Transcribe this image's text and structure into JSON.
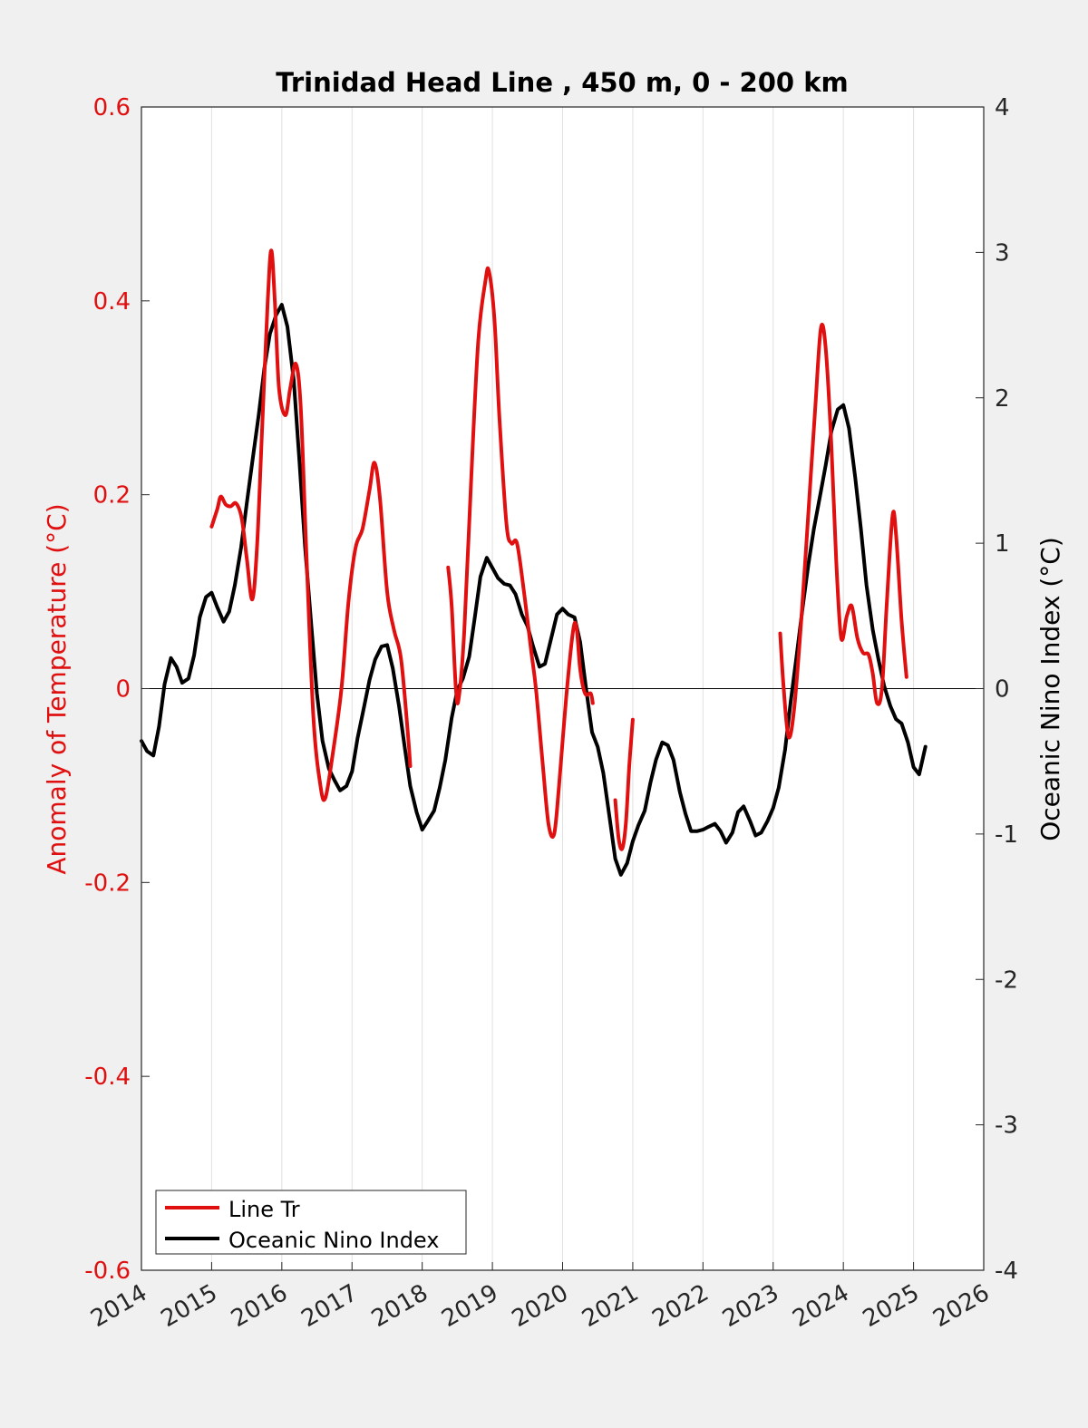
{
  "chart_data": {
    "type": "line",
    "title": "Trinidad Head Line , 450 m, 0 - 200 km",
    "xlabel": "",
    "ylabel_left": "Anomaly of Temperature (°C)",
    "ylabel_right": "Oceanic Nino Index (°C)",
    "xlim": [
      2014,
      2026
    ],
    "ylim_left": [
      -0.6,
      0.6
    ],
    "ylim_right": [
      -4,
      4
    ],
    "x_ticks": [
      "2014",
      "2015",
      "2016",
      "2017",
      "2018",
      "2019",
      "2020",
      "2021",
      "2022",
      "2023",
      "2024",
      "2025",
      "2026"
    ],
    "y_left_ticks": [
      "0.6",
      "0.4",
      "0.2",
      "0",
      "-0.2",
      "-0.4",
      "-0.6"
    ],
    "y_right_ticks": [
      "4",
      "3",
      "2",
      "1",
      "0",
      "-1",
      "-2",
      "-3",
      "-4"
    ],
    "grid": "x",
    "legend_position": "bottom-left",
    "colors": {
      "left_axis": "#e01010",
      "line_tr": "#e01010",
      "oni": "#000000"
    },
    "series": [
      {
        "name": "Line Tr",
        "axis": "left",
        "segments": [
          [
            [
              2015.0,
              0.167
            ],
            [
              2015.08,
              0.185
            ],
            [
              2015.13,
              0.198
            ],
            [
              2015.2,
              0.19
            ],
            [
              2015.27,
              0.188
            ],
            [
              2015.35,
              0.191
            ],
            [
              2015.43,
              0.175
            ],
            [
              2015.5,
              0.135
            ],
            [
              2015.58,
              0.092
            ],
            [
              2015.65,
              0.15
            ],
            [
              2015.72,
              0.27
            ],
            [
              2015.8,
              0.4
            ],
            [
              2015.85,
              0.452
            ],
            [
              2015.9,
              0.4
            ],
            [
              2015.96,
              0.31
            ],
            [
              2016.05,
              0.282
            ],
            [
              2016.12,
              0.31
            ],
            [
              2016.2,
              0.335
            ],
            [
              2016.27,
              0.29
            ],
            [
              2016.35,
              0.14
            ],
            [
              2016.45,
              -0.03
            ],
            [
              2016.55,
              -0.1
            ],
            [
              2016.62,
              -0.113
            ],
            [
              2016.72,
              -0.07
            ],
            [
              2016.85,
              0.0
            ],
            [
              2016.95,
              0.09
            ],
            [
              2017.05,
              0.145
            ],
            [
              2017.15,
              0.165
            ],
            [
              2017.25,
              0.205
            ],
            [
              2017.32,
              0.233
            ],
            [
              2017.4,
              0.195
            ],
            [
              2017.5,
              0.1
            ],
            [
              2017.6,
              0.06
            ],
            [
              2017.7,
              0.03
            ],
            [
              2017.8,
              -0.05
            ],
            [
              2017.83,
              -0.08
            ]
          ],
          [
            [
              2018.37,
              0.125
            ],
            [
              2018.42,
              0.085
            ],
            [
              2018.48,
              0.0
            ],
            [
              2018.52,
              -0.01
            ],
            [
              2018.6,
              0.06
            ],
            [
              2018.7,
              0.22
            ],
            [
              2018.8,
              0.36
            ],
            [
              2018.9,
              0.42
            ],
            [
              2018.95,
              0.431
            ],
            [
              2019.03,
              0.38
            ],
            [
              2019.1,
              0.28
            ],
            [
              2019.2,
              0.17
            ],
            [
              2019.27,
              0.15
            ],
            [
              2019.35,
              0.15
            ],
            [
              2019.45,
              0.1
            ],
            [
              2019.55,
              0.04
            ],
            [
              2019.62,
              0.0
            ],
            [
              2019.72,
              -0.08
            ],
            [
              2019.8,
              -0.14
            ],
            [
              2019.88,
              -0.15
            ],
            [
              2019.95,
              -0.1
            ],
            [
              2020.05,
              -0.01
            ],
            [
              2020.15,
              0.06
            ],
            [
              2020.2,
              0.062
            ],
            [
              2020.25,
              0.02
            ],
            [
              2020.32,
              -0.005
            ],
            [
              2020.4,
              -0.005
            ],
            [
              2020.43,
              -0.015
            ]
          ],
          [
            [
              2020.75,
              -0.115
            ],
            [
              2020.8,
              -0.155
            ],
            [
              2020.85,
              -0.165
            ],
            [
              2020.9,
              -0.14
            ],
            [
              2020.95,
              -0.08
            ],
            [
              2021.0,
              -0.032
            ]
          ],
          [
            [
              2023.1,
              0.057
            ],
            [
              2023.15,
              0.0
            ],
            [
              2023.22,
              -0.05
            ],
            [
              2023.3,
              -0.02
            ],
            [
              2023.4,
              0.07
            ],
            [
              2023.5,
              0.18
            ],
            [
              2023.6,
              0.29
            ],
            [
              2023.68,
              0.372
            ],
            [
              2023.75,
              0.35
            ],
            [
              2023.83,
              0.25
            ],
            [
              2023.9,
              0.13
            ],
            [
              2023.97,
              0.052
            ],
            [
              2024.05,
              0.075
            ],
            [
              2024.12,
              0.085
            ],
            [
              2024.2,
              0.052
            ],
            [
              2024.28,
              0.037
            ],
            [
              2024.36,
              0.035
            ],
            [
              2024.42,
              0.015
            ],
            [
              2024.48,
              -0.015
            ],
            [
              2024.55,
              0.0
            ],
            [
              2024.62,
              0.09
            ],
            [
              2024.7,
              0.178
            ],
            [
              2024.75,
              0.16
            ],
            [
              2024.83,
              0.07
            ],
            [
              2024.9,
              0.012
            ]
          ]
        ]
      },
      {
        "name": "Oceanic Nino Index",
        "axis": "right",
        "segments": [
          [
            [
              2014.0,
              -0.36
            ],
            [
              2014.08,
              -0.43
            ],
            [
              2014.17,
              -0.46
            ],
            [
              2014.25,
              -0.26
            ],
            [
              2014.33,
              0.03
            ],
            [
              2014.42,
              0.21
            ],
            [
              2014.5,
              0.15
            ],
            [
              2014.58,
              0.04
            ],
            [
              2014.67,
              0.07
            ],
            [
              2014.75,
              0.23
            ],
            [
              2014.83,
              0.49
            ],
            [
              2014.92,
              0.63
            ],
            [
              2015.0,
              0.66
            ],
            [
              2015.08,
              0.56
            ],
            [
              2015.17,
              0.46
            ],
            [
              2015.25,
              0.53
            ],
            [
              2015.33,
              0.71
            ],
            [
              2015.42,
              0.97
            ],
            [
              2015.5,
              1.27
            ],
            [
              2015.58,
              1.56
            ],
            [
              2015.67,
              1.88
            ],
            [
              2015.75,
              2.2
            ],
            [
              2015.83,
              2.44
            ],
            [
              2015.92,
              2.57
            ],
            [
              2016.0,
              2.64
            ],
            [
              2016.08,
              2.49
            ],
            [
              2016.17,
              2.12
            ],
            [
              2016.25,
              1.57
            ],
            [
              2016.33,
              0.98
            ],
            [
              2016.42,
              0.44
            ],
            [
              2016.5,
              -0.03
            ],
            [
              2016.58,
              -0.36
            ],
            [
              2016.67,
              -0.55
            ],
            [
              2016.75,
              -0.63
            ],
            [
              2016.83,
              -0.7
            ],
            [
              2016.92,
              -0.67
            ],
            [
              2017.0,
              -0.57
            ],
            [
              2017.08,
              -0.34
            ],
            [
              2017.17,
              -0.13
            ],
            [
              2017.25,
              0.06
            ],
            [
              2017.33,
              0.2
            ],
            [
              2017.42,
              0.29
            ],
            [
              2017.5,
              0.3
            ],
            [
              2017.58,
              0.14
            ],
            [
              2017.67,
              -0.12
            ],
            [
              2017.75,
              -0.4
            ],
            [
              2017.83,
              -0.67
            ],
            [
              2017.92,
              -0.85
            ],
            [
              2018.0,
              -0.97
            ],
            [
              2018.08,
              -0.91
            ],
            [
              2018.17,
              -0.84
            ],
            [
              2018.25,
              -0.68
            ],
            [
              2018.33,
              -0.49
            ],
            [
              2018.42,
              -0.2
            ],
            [
              2018.5,
              -0.01
            ],
            [
              2018.58,
              0.07
            ],
            [
              2018.67,
              0.22
            ],
            [
              2018.75,
              0.49
            ],
            [
              2018.83,
              0.77
            ],
            [
              2018.92,
              0.9
            ],
            [
              2019.0,
              0.83
            ],
            [
              2019.08,
              0.76
            ],
            [
              2019.17,
              0.72
            ],
            [
              2019.25,
              0.71
            ],
            [
              2019.33,
              0.65
            ],
            [
              2019.42,
              0.51
            ],
            [
              2019.5,
              0.43
            ],
            [
              2019.58,
              0.29
            ],
            [
              2019.67,
              0.15
            ],
            [
              2019.75,
              0.17
            ],
            [
              2019.83,
              0.33
            ],
            [
              2019.92,
              0.51
            ],
            [
              2020.0,
              0.55
            ],
            [
              2020.08,
              0.51
            ],
            [
              2020.17,
              0.49
            ],
            [
              2020.25,
              0.32
            ],
            [
              2020.33,
              0.02
            ],
            [
              2020.42,
              -0.3
            ],
            [
              2020.5,
              -0.4
            ],
            [
              2020.58,
              -0.58
            ],
            [
              2020.67,
              -0.89
            ],
            [
              2020.75,
              -1.17
            ],
            [
              2020.83,
              -1.28
            ],
            [
              2020.92,
              -1.2
            ],
            [
              2021.0,
              -1.05
            ],
            [
              2021.08,
              -0.94
            ],
            [
              2021.17,
              -0.84
            ],
            [
              2021.25,
              -0.65
            ],
            [
              2021.33,
              -0.49
            ],
            [
              2021.42,
              -0.37
            ],
            [
              2021.5,
              -0.39
            ],
            [
              2021.58,
              -0.49
            ],
            [
              2021.67,
              -0.71
            ],
            [
              2021.75,
              -0.86
            ],
            [
              2021.83,
              -0.98
            ],
            [
              2021.92,
              -0.98
            ],
            [
              2022.0,
              -0.97
            ],
            [
              2022.08,
              -0.95
            ],
            [
              2022.17,
              -0.93
            ],
            [
              2022.25,
              -0.98
            ],
            [
              2022.33,
              -1.06
            ],
            [
              2022.42,
              -0.99
            ],
            [
              2022.5,
              -0.85
            ],
            [
              2022.58,
              -0.81
            ],
            [
              2022.67,
              -0.91
            ],
            [
              2022.75,
              -1.01
            ],
            [
              2022.83,
              -0.99
            ],
            [
              2022.92,
              -0.91
            ],
            [
              2023.0,
              -0.82
            ],
            [
              2023.08,
              -0.68
            ],
            [
              2023.17,
              -0.42
            ],
            [
              2023.25,
              -0.09
            ],
            [
              2023.33,
              0.21
            ],
            [
              2023.42,
              0.56
            ],
            [
              2023.5,
              0.85
            ],
            [
              2023.58,
              1.1
            ],
            [
              2023.67,
              1.33
            ],
            [
              2023.75,
              1.54
            ],
            [
              2023.83,
              1.77
            ],
            [
              2023.92,
              1.92
            ],
            [
              2024.0,
              1.95
            ],
            [
              2024.08,
              1.79
            ],
            [
              2024.17,
              1.45
            ],
            [
              2024.25,
              1.1
            ],
            [
              2024.33,
              0.71
            ],
            [
              2024.42,
              0.4
            ],
            [
              2024.5,
              0.2
            ],
            [
              2024.58,
              0.02
            ],
            [
              2024.67,
              -0.12
            ],
            [
              2024.75,
              -0.21
            ],
            [
              2024.83,
              -0.24
            ],
            [
              2024.92,
              -0.37
            ],
            [
              2025.0,
              -0.54
            ],
            [
              2025.08,
              -0.59
            ],
            [
              2025.17,
              -0.4
            ]
          ]
        ]
      }
    ]
  },
  "legend": {
    "items": [
      {
        "label": "Line Tr",
        "color": "#e01010"
      },
      {
        "label": "Oceanic Nino Index",
        "color": "#000000"
      }
    ]
  }
}
